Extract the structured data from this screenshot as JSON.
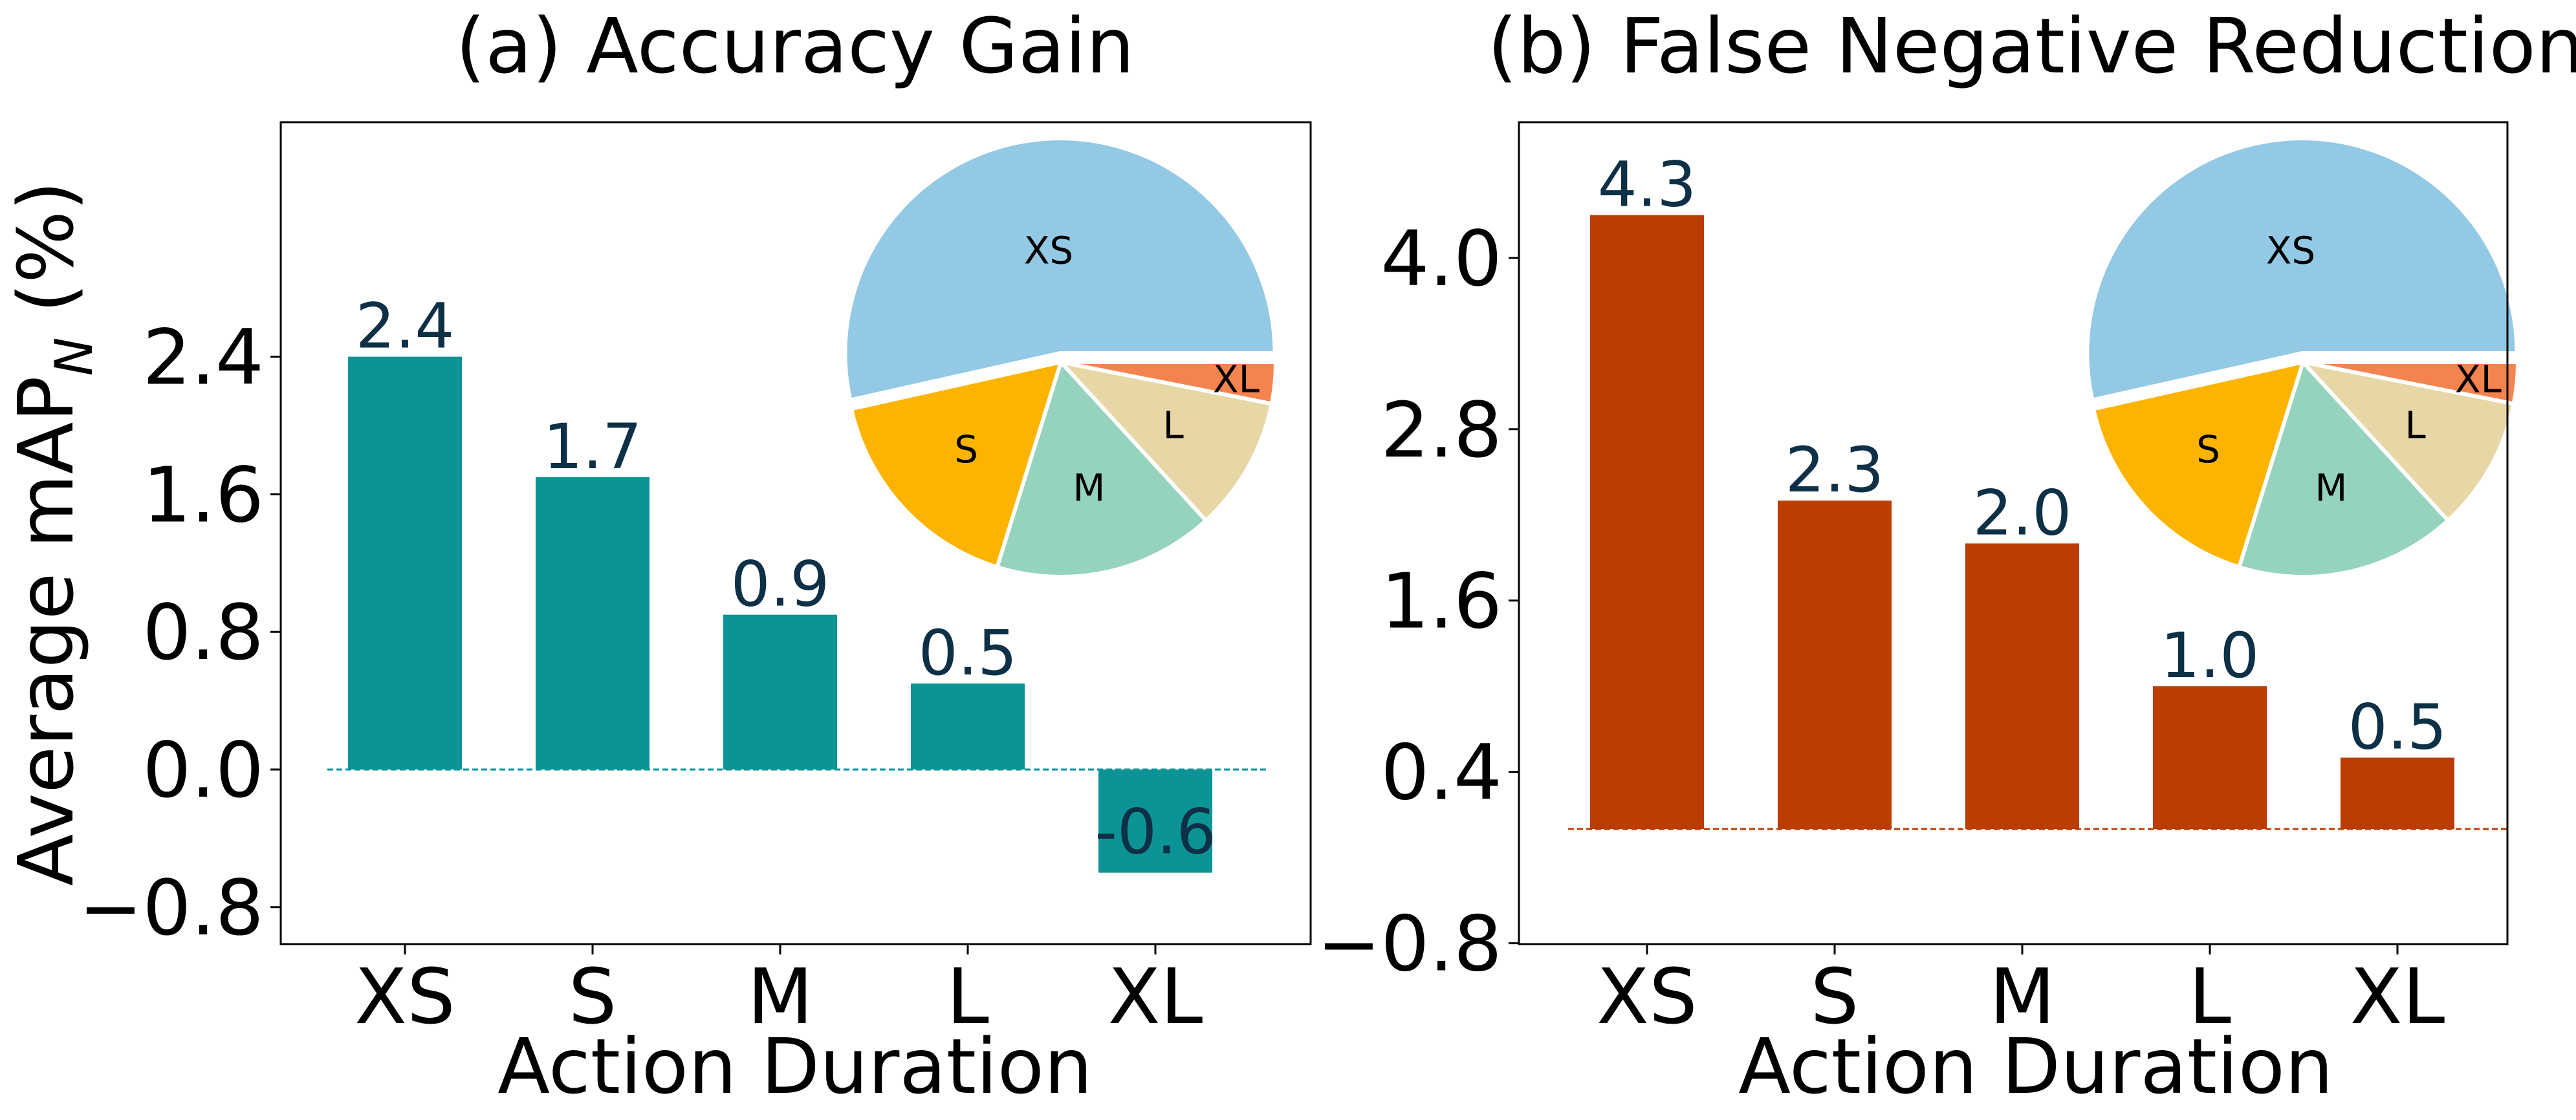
{
  "chart_data": [
    {
      "type": "bar",
      "title": "(a) Accuracy Gain",
      "xlabel": "Action Duration",
      "ylabel_main": "Average mAP",
      "ylabel_sub": "N",
      "ylabel_suffix": " (%)",
      "categories": [
        "XS",
        "S",
        "M",
        "L",
        "XL"
      ],
      "values": [
        2.4,
        1.7,
        0.9,
        0.5,
        -0.6
      ],
      "value_labels": [
        "2.4",
        "1.7",
        "0.9",
        "0.5",
        "-0.6"
      ],
      "yticks": [
        -0.8,
        0.0,
        0.8,
        1.6,
        2.4
      ],
      "ytick_labels": [
        "−0.8",
        "0.0",
        "0.8",
        "1.6",
        "2.4"
      ],
      "ylim": [
        -0.8,
        3.0
      ],
      "baseline": 0.0,
      "bar_color": "#0b9396",
      "inset_pie": {
        "labels": [
          "XS",
          "S",
          "M",
          "L",
          "XL"
        ],
        "values": [
          53.5,
          16.7,
          16.6,
          10.1,
          3.1
        ],
        "colors": [
          "#93c9e5",
          "#fdb400",
          "#96d3bd",
          "#e8d7a6",
          "#f4844f"
        ]
      }
    },
    {
      "type": "bar",
      "title": "(b) False Negative Reduction",
      "xlabel": "Action Duration",
      "categories": [
        "XS",
        "S",
        "M",
        "L",
        "XL"
      ],
      "values": [
        4.3,
        2.3,
        2.0,
        1.0,
        0.5
      ],
      "value_labels": [
        "4.3",
        "2.3",
        "2.0",
        "1.0",
        "0.5"
      ],
      "yticks": [
        -0.8,
        0.4,
        1.6,
        2.8,
        4.0
      ],
      "ytick_labels": [
        "−0.8",
        "0.4",
        "1.6",
        "2.8",
        "4.0"
      ],
      "ylim": [
        -0.8,
        4.9
      ],
      "baseline": 0.0,
      "bar_color": "#bb3d03",
      "inset_pie": {
        "labels": [
          "XS",
          "S",
          "M",
          "L",
          "XL"
        ],
        "values": [
          53.5,
          16.7,
          16.6,
          10.1,
          3.1
        ],
        "colors": [
          "#93c9e5",
          "#fdb400",
          "#96d3bd",
          "#e8d7a6",
          "#f4844f"
        ]
      }
    }
  ]
}
